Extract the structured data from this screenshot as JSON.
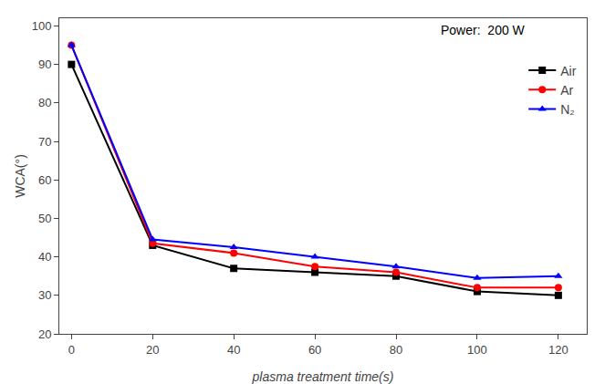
{
  "chart_data": {
    "type": "line",
    "x": [
      0,
      20,
      40,
      60,
      80,
      100,
      120
    ],
    "series": [
      {
        "name": "Air",
        "color": "#000000",
        "marker": "square",
        "values": [
          90,
          43,
          37,
          36,
          35,
          31,
          30
        ]
      },
      {
        "name": "Ar",
        "color": "#ff0000",
        "marker": "circle",
        "values": [
          95,
          43.5,
          41,
          37.5,
          36,
          32,
          32
        ]
      },
      {
        "name": "N₂",
        "color": "#0000ff",
        "marker": "triangle-up",
        "values": [
          95,
          44.5,
          42.5,
          40,
          37.5,
          34.5,
          35
        ]
      }
    ],
    "xlabel": "plasma treatment time(s)",
    "ylabel": "WCA(°)",
    "xlim": [
      -3,
      127
    ],
    "ylim": [
      20,
      102
    ],
    "xticks": [
      0,
      20,
      40,
      60,
      80,
      100,
      120
    ],
    "yticks": [
      20,
      30,
      40,
      50,
      60,
      70,
      80,
      90,
      100
    ],
    "grid": false,
    "legend": "upper right",
    "annotations": [
      "Power:  200 W"
    ]
  }
}
